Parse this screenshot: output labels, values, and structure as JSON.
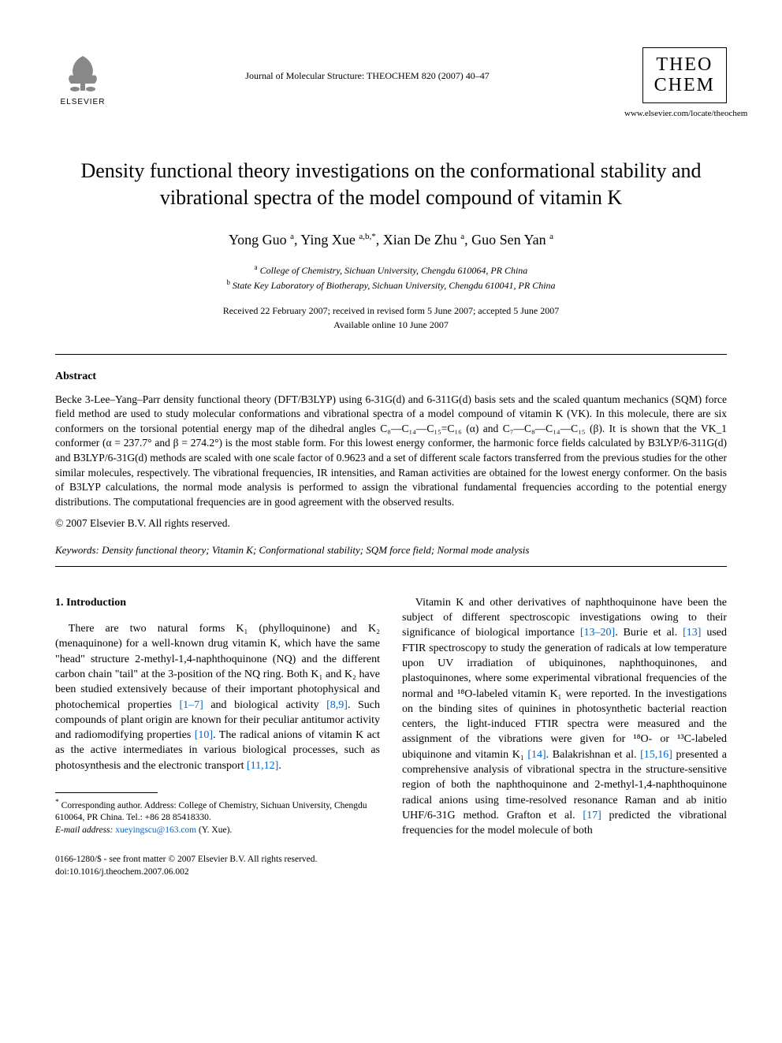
{
  "header": {
    "publisher_name": "ELSEVIER",
    "journal_ref": "Journal of Molecular Structure: THEOCHEM 820 (2007) 40–47",
    "journal_logo_line1": "THEO",
    "journal_logo_line2": "CHEM",
    "journal_url": "www.elsevier.com/locate/theochem"
  },
  "title": "Density functional theory investigations on the conformational stability and vibrational spectra of the model compound of vitamin K",
  "authors_html": "Yong Guo <sup>a</sup>, Ying Xue <sup>a,b,*</sup>, Xian De Zhu <sup>a</sup>, Guo Sen Yan <sup>a</sup>",
  "affiliations": {
    "a": "College of Chemistry, Sichuan University, Chengdu 610064, PR China",
    "b": "State Key Laboratory of Biotherapy, Sichuan University, Chengdu 610041, PR China"
  },
  "dates": {
    "received": "Received 22 February 2007; received in revised form 5 June 2007; accepted 5 June 2007",
    "online": "Available online 10 June 2007"
  },
  "abstract": {
    "heading": "Abstract",
    "body": "Becke 3-Lee–Yang–Parr density functional theory (DFT/B3LYP) using 6-31G(d) and 6-311G(d) basis sets and the scaled quantum mechanics (SQM) force field method are used to study molecular conformations and vibrational spectra of a model compound of vitamin K (VK). In this molecule, there are six conformers on the torsional potential energy map of the dihedral angles C₈—C₁₄—C₁₅=C₁₆ (α) and C₇—C₈—C₁₄—C₁₅ (β). It is shown that the VK_1 conformer (α = 237.7° and β = 274.2°) is the most stable form. For this lowest energy conformer, the harmonic force fields calculated by B3LYP/6-311G(d) and B3LYP/6-31G(d) methods are scaled with one scale factor of 0.9623 and a set of different scale factors transferred from the previous studies for the other similar molecules, respectively. The vibrational frequencies, IR intensities, and Raman activities are obtained for the lowest energy conformer. On the basis of B3LYP calculations, the normal mode analysis is performed to assign the vibrational fundamental frequencies according to the potential energy distributions. The computational frequencies are in good agreement with the observed results.",
    "copyright": "© 2007 Elsevier B.V. All rights reserved."
  },
  "keywords": {
    "label": "Keywords:",
    "list": "Density functional theory; Vitamin K; Conformational stability; SQM force field; Normal mode analysis"
  },
  "section1": {
    "heading": "1. Introduction",
    "col1_html": "There are two natural forms K₁ (phylloquinone) and K₂ (menaquinone) for a well-known drug vitamin K, which have the same \"head\" structure 2-methyl-1,4-naphthoquinone (NQ) and the different carbon chain \"tail\" at the 3-position of the NQ ring. Both K₁ and K₂ have been studied extensively because of their important photophysical and photochemical properties <span class=\"ref-link\">[1–7]</span> and biological activity <span class=\"ref-link\">[8,9]</span>. Such compounds of plant origin are known for their peculiar antitumor activity and radiomodifying properties <span class=\"ref-link\">[10]</span>. The radical anions of vitamin K act as the active intermediates in various biological processes, such as photosynthesis and the electronic transport <span class=\"ref-link\">[11,12]</span>.",
    "col2_html": "Vitamin K and other derivatives of naphthoquinone have been the subject of different spectroscopic investigations owing to their significance of biological importance <span class=\"ref-link\">[13–20]</span>. Burie et al. <span class=\"ref-link\">[13]</span> used FTIR spectroscopy to study the generation of radicals at low temperature upon UV irradiation of ubiquinones, naphthoquinones, and plastoquinones, where some experimental vibrational frequencies of the normal and ¹⁸O-labeled vitamin K₁ were reported. In the investigations on the binding sites of quinines in photosynthetic bacterial reaction centers, the light-induced FTIR spectra were measured and the assignment of the vibrations were given for ¹⁸O- or ¹³C-labeled ubiquinone and vitamin K₁ <span class=\"ref-link\">[14]</span>. Balakrishnan et al. <span class=\"ref-link\">[15,16]</span> presented a comprehensive analysis of vibrational spectra in the structure-sensitive region of both the naphthoquinone and 2-methyl-1,4-naphthoquinone radical anions using time-resolved resonance Raman and ab initio UHF/6-31G method. Grafton et al. <span class=\"ref-link\">[17]</span> predicted the vibrational frequencies for the model molecule of both"
  },
  "footnote": {
    "corr": "Corresponding author. Address: College of Chemistry, Sichuan University, Chengdu 610064, PR China. Tel.: +86 28 85418330.",
    "email_label": "E-mail address:",
    "email": "xueyingscu@163.com",
    "email_who": "(Y. Xue)."
  },
  "bottom": {
    "line1": "0166-1280/$ - see front matter © 2007 Elsevier B.V. All rights reserved.",
    "line2": "doi:10.1016/j.theochem.2007.06.002"
  },
  "colors": {
    "link": "#0066cc",
    "text": "#000000",
    "background": "#ffffff"
  }
}
